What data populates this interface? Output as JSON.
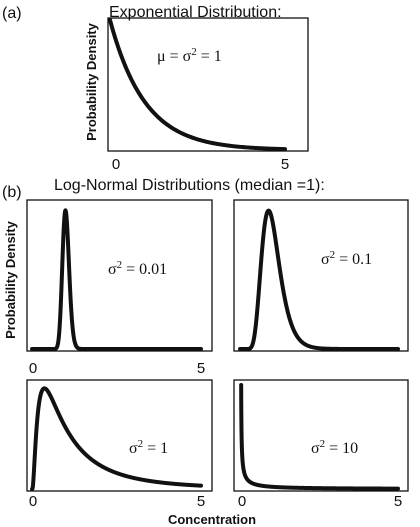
{
  "figure": {
    "label_a": "(a)",
    "label_b": "(b)",
    "title_a": "Exponential Distribution:",
    "title_b": "Log-Normal Distributions (median =1):",
    "ylabel": "Probability Density",
    "xlabel": "Concentration"
  },
  "chart_data": [
    {
      "id": "a",
      "type": "line",
      "distribution": "exponential",
      "mean": 1,
      "annotation": {
        "prefix": "μ = σ",
        "sup": "2",
        "suffix": " = 1"
      },
      "xlim": [
        0,
        5
      ],
      "x_ticks": [
        "0",
        "5"
      ],
      "series": [
        {
          "values_x": [
            0,
            0.25,
            0.5,
            1,
            1.5,
            2,
            3,
            4,
            5
          ],
          "values_y": [
            1,
            0.78,
            0.61,
            0.37,
            0.22,
            0.14,
            0.05,
            0.018,
            0.007
          ]
        }
      ]
    },
    {
      "id": "b1",
      "type": "line",
      "distribution": "log-normal",
      "median": 1,
      "variance": 0.01,
      "annotation": {
        "prefix": "σ",
        "sup": "2",
        "suffix": " = 0.01"
      },
      "xlim": [
        0,
        5
      ],
      "x_ticks": [
        "0",
        "5"
      ]
    },
    {
      "id": "b2",
      "type": "line",
      "distribution": "log-normal",
      "median": 1,
      "variance": 0.1,
      "annotation": {
        "prefix": "σ",
        "sup": "2",
        "suffix": " = 0.1"
      },
      "xlim": [
        0,
        5
      ],
      "x_ticks": []
    },
    {
      "id": "b3",
      "type": "line",
      "distribution": "log-normal",
      "median": 1,
      "variance": 1,
      "annotation": {
        "prefix": "σ",
        "sup": "2",
        "suffix": " = 1"
      },
      "xlim": [
        0,
        5
      ],
      "x_ticks": [
        "0",
        "5"
      ]
    },
    {
      "id": "b4",
      "type": "line",
      "distribution": "log-normal",
      "median": 1,
      "variance": 10,
      "annotation": {
        "prefix": "σ",
        "sup": "2",
        "suffix": " = 10"
      },
      "xlim": [
        0,
        5
      ],
      "x_ticks": [
        "0",
        "5"
      ]
    }
  ]
}
